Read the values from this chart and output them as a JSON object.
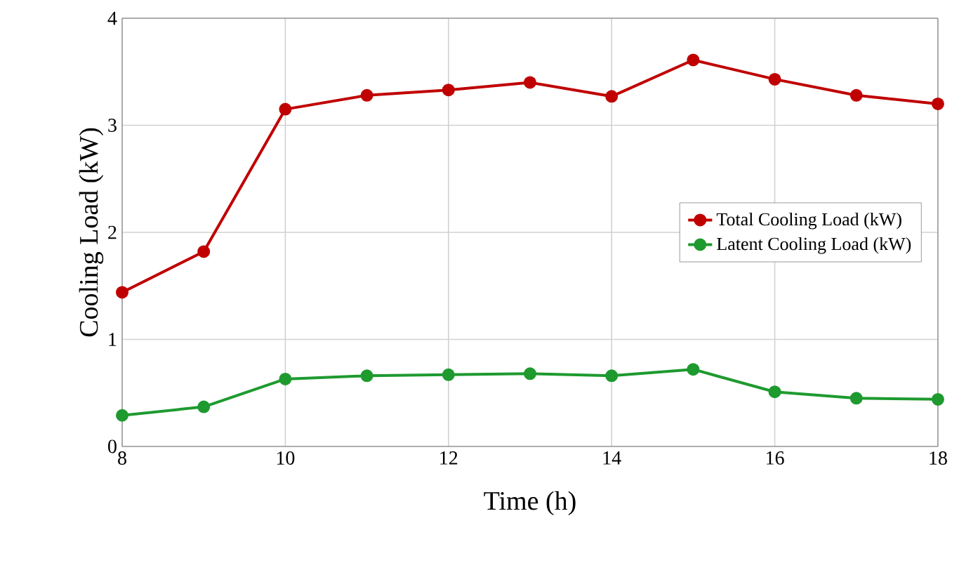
{
  "chart_data": {
    "type": "line",
    "xlabel": "Time (h)",
    "ylabel": "Cooling Load (kW)",
    "x": [
      8,
      9,
      10,
      11,
      12,
      13,
      14,
      15,
      16,
      17,
      18
    ],
    "series": [
      {
        "name": "Total Cooling Load (kW)",
        "color": "#c00000",
        "values": [
          1.44,
          1.82,
          3.15,
          3.28,
          3.33,
          3.4,
          3.27,
          3.61,
          3.43,
          3.28,
          3.2
        ]
      },
      {
        "name": "Latent Cooling Load (kW)",
        "color": "#1e9a2f",
        "values": [
          0.29,
          0.37,
          0.63,
          0.66,
          0.67,
          0.68,
          0.66,
          0.72,
          0.51,
          0.45,
          0.44
        ]
      }
    ],
    "xlim": [
      8,
      18
    ],
    "xticks": [
      8,
      10,
      12,
      14,
      16,
      18
    ],
    "ylim": [
      0,
      4
    ],
    "yticks": [
      0,
      1,
      2,
      3,
      4
    ],
    "grid": true,
    "legend": "right",
    "marker": "circle",
    "line_style": "solid"
  }
}
